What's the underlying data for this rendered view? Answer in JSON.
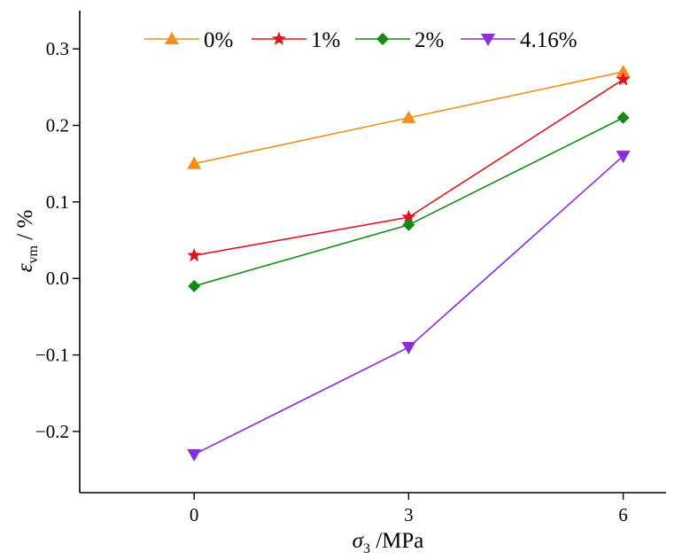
{
  "chart_data": {
    "type": "line",
    "title": "",
    "xlabel": {
      "symbol": "σ",
      "sub": "3",
      "unit": " /MPa"
    },
    "ylabel": {
      "symbol": "ε",
      "sub": "vm",
      "unit": " / %"
    },
    "xlim": [
      -1.6,
      6.6
    ],
    "ylim": [
      -0.28,
      0.35
    ],
    "x_ticks": [
      0,
      3,
      6
    ],
    "x_tick_labels": [
      "0",
      "3",
      "6"
    ],
    "y_ticks": [
      -0.2,
      -0.1,
      0.0,
      0.1,
      0.2,
      0.3
    ],
    "y_tick_labels": [
      "−0.2",
      "−0.1",
      "0.0",
      "0.1",
      "0.2",
      "0.3"
    ],
    "grid": false,
    "legend_position": "top",
    "x": [
      0,
      3,
      6
    ],
    "series": [
      {
        "name": "0%",
        "values": [
          0.15,
          0.21,
          0.27
        ],
        "color": "#F28E1C",
        "marker": "triangle-up"
      },
      {
        "name": "1%",
        "values": [
          0.03,
          0.08,
          0.26
        ],
        "color": "#E0141B",
        "marker": "star"
      },
      {
        "name": "2%",
        "values": [
          -0.01,
          0.07,
          0.21
        ],
        "color": "#138A13",
        "marker": "diamond"
      },
      {
        "name": "4.16%",
        "values": [
          -0.23,
          -0.09,
          0.16
        ],
        "color": "#8A2BE2",
        "marker": "triangle-down"
      }
    ]
  }
}
